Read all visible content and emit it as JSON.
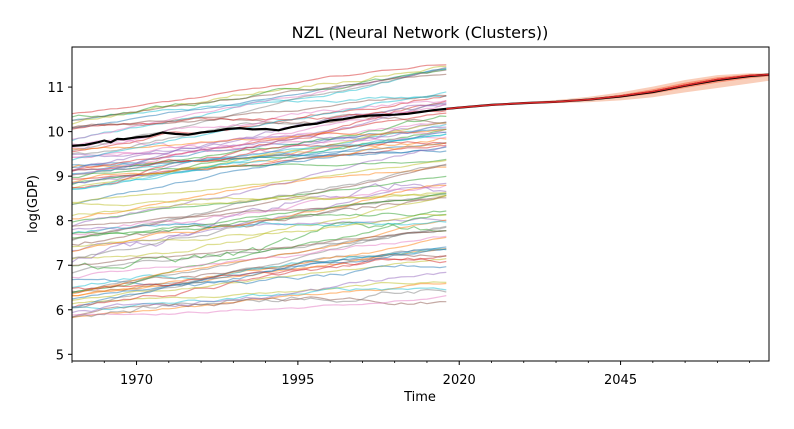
{
  "chart_data": {
    "type": "line",
    "title": "NZL (Neural Network (Clusters))",
    "xlabel": "Time",
    "ylabel": "log(GDP)",
    "xlim": [
      1960,
      2068
    ],
    "ylim": [
      4.85,
      11.9
    ],
    "x_ticks": [
      1970,
      1995,
      2020,
      2045
    ],
    "x_minor_tick_step": 5,
    "y_ticks": [
      5,
      6,
      7,
      8,
      9,
      10,
      11
    ],
    "grid": false,
    "historical_years": [
      1960,
      2018
    ],
    "background_series_count": 90,
    "background_series_note": "Many translucent multicolored country log(GDP) trajectories spanning roughly 5.3 to 11.5 between 1960 and 2018.",
    "series": [
      {
        "name": "",
        "role": "highlighted-history",
        "color": "#000000",
        "x": [
          1960,
          1962,
          1964,
          1965,
          1966,
          1967,
          1968,
          1970,
          1972,
          1974,
          1976,
          1978,
          1980,
          1982,
          1984,
          1986,
          1988,
          1990,
          1992,
          1994,
          1996,
          1998,
          2000,
          2002,
          2004,
          2006,
          2008,
          2010,
          2012,
          2014,
          2016,
          2018
        ],
        "values": [
          9.68,
          9.7,
          9.76,
          9.8,
          9.76,
          9.84,
          9.83,
          9.87,
          9.9,
          9.98,
          9.95,
          9.93,
          9.98,
          10.01,
          10.06,
          10.08,
          10.05,
          10.06,
          10.03,
          10.1,
          10.15,
          10.18,
          10.25,
          10.28,
          10.33,
          10.36,
          10.37,
          10.38,
          10.4,
          10.44,
          10.48,
          10.51
        ]
      },
      {
        "name": "",
        "role": "forecast-median",
        "color": "#000000",
        "x": [
          2018,
          2020,
          2025,
          2030,
          2035,
          2040,
          2045,
          2050,
          2055,
          2060,
          2065,
          2068
        ],
        "values": [
          10.51,
          10.54,
          10.6,
          10.64,
          10.67,
          10.72,
          10.79,
          10.89,
          11.03,
          11.16,
          11.25,
          11.28
        ]
      },
      {
        "name": "",
        "role": "forecast-forecast-line",
        "color": "#d62728",
        "x": [
          2018,
          2020,
          2025,
          2030,
          2035,
          2040,
          2045,
          2050,
          2055,
          2060,
          2065,
          2068
        ],
        "values": [
          10.51,
          10.54,
          10.6,
          10.64,
          10.67,
          10.72,
          10.8,
          10.9,
          11.04,
          11.17,
          11.26,
          11.28
        ]
      }
    ],
    "uncertainty_bands": [
      {
        "color": "#f4a582",
        "opacity": 0.55,
        "x": [
          2018,
          2025,
          2030,
          2035,
          2040,
          2045,
          2050,
          2055,
          2060,
          2065,
          2068
        ],
        "lower": [
          10.51,
          10.59,
          10.62,
          10.64,
          10.66,
          10.7,
          10.77,
          10.88,
          10.98,
          11.08,
          11.14
        ],
        "upper": [
          10.51,
          10.61,
          10.66,
          10.71,
          10.78,
          10.88,
          11.01,
          11.16,
          11.27,
          11.31,
          11.31
        ]
      },
      {
        "color": "#fb6a4a",
        "opacity": 0.6,
        "x": [
          2018,
          2025,
          2030,
          2035,
          2040,
          2045,
          2050,
          2055,
          2060,
          2065,
          2068
        ],
        "lower": [
          10.51,
          10.59,
          10.63,
          10.66,
          10.7,
          10.76,
          10.85,
          10.98,
          11.1,
          11.2,
          11.24
        ],
        "upper": [
          10.51,
          10.61,
          10.65,
          10.69,
          10.74,
          10.83,
          10.95,
          11.1,
          11.22,
          11.29,
          11.3
        ]
      }
    ],
    "background_palette": [
      "#1f77b4",
      "#ff7f0e",
      "#2ca02c",
      "#d62728",
      "#9467bd",
      "#8c564b",
      "#e377c2",
      "#7f7f7f",
      "#bcbd22",
      "#17becf"
    ]
  }
}
